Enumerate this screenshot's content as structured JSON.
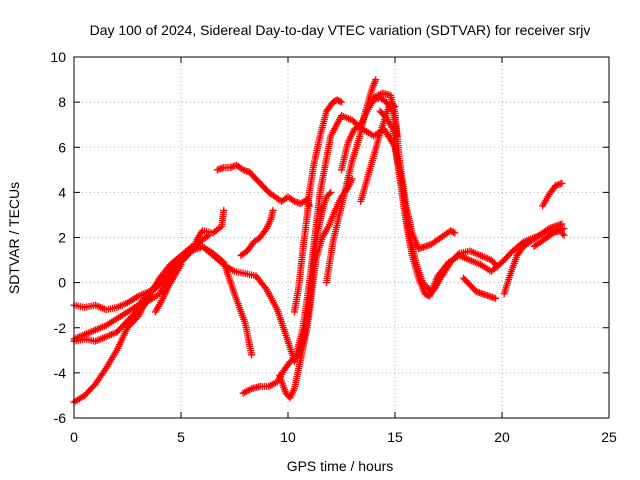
{
  "chart_data": {
    "type": "scatter",
    "title": "Day 100 of 2024, Sidereal Day-to-day VTEC variation (SDTVAR) for receiver srjv",
    "xlabel": "GPS time / hours",
    "ylabel": "SDTVAR / TECUs",
    "xlim": [
      0,
      25
    ],
    "ylim": [
      -6,
      10
    ],
    "xticks": [
      "0",
      "5",
      "10",
      "15",
      "20",
      "25"
    ],
    "yticks": [
      "-6",
      "-4",
      "-2",
      "0",
      "2",
      "4",
      "6",
      "8",
      "10"
    ],
    "grid": true,
    "marker": "+",
    "color": "#ff0000",
    "series": [
      {
        "points": [
          [
            0.0,
            -5.3
          ],
          [
            0.5,
            -5.0
          ],
          [
            1.0,
            -4.5
          ],
          [
            1.5,
            -3.8
          ],
          [
            2.0,
            -3.0
          ],
          [
            2.5,
            -2.0
          ],
          [
            3.0,
            -1.5
          ],
          [
            3.5,
            -0.6
          ],
          [
            4.0,
            0.2
          ],
          [
            4.5,
            0.8
          ],
          [
            5.0,
            1.2
          ],
          [
            5.5,
            1.6
          ],
          [
            6.0,
            1.6
          ],
          [
            6.5,
            1.2
          ],
          [
            7.0,
            0.8
          ],
          [
            7.5,
            0.5
          ],
          [
            8.0,
            0.4
          ],
          [
            8.5,
            0.3
          ],
          [
            9.0,
            -0.3
          ],
          [
            9.5,
            -1.2
          ],
          [
            10.0,
            -2.6
          ],
          [
            10.3,
            -3.5
          ],
          [
            10.7,
            -2.0
          ],
          [
            11.0,
            0.0
          ],
          [
            11.5,
            4.0
          ],
          [
            12.0,
            6.5
          ],
          [
            12.5,
            7.4
          ],
          [
            13.0,
            7.2
          ],
          [
            13.5,
            6.8
          ],
          [
            14.0,
            6.5
          ],
          [
            14.5,
            6.8
          ],
          [
            15.0,
            6.0
          ],
          [
            15.3,
            4.5
          ],
          [
            15.6,
            2.5
          ],
          [
            16.0,
            0.8
          ],
          [
            16.3,
            0.0
          ],
          [
            16.7,
            -0.4
          ],
          [
            17.0,
            0.3
          ],
          [
            17.5,
            0.9
          ],
          [
            18.0,
            1.2
          ],
          [
            18.5,
            1.0
          ],
          [
            19.0,
            0.8
          ],
          [
            19.5,
            0.5
          ],
          [
            20.0,
            0.9
          ],
          [
            20.5,
            1.4
          ],
          [
            21.0,
            1.8
          ],
          [
            21.5,
            2.0
          ],
          [
            22.0,
            2.2
          ],
          [
            22.5,
            2.3
          ],
          [
            22.9,
            2.4
          ]
        ]
      },
      {
        "points": [
          [
            0.0,
            -2.6
          ],
          [
            0.5,
            -2.5
          ],
          [
            1.0,
            -2.6
          ],
          [
            1.5,
            -2.4
          ],
          [
            2.0,
            -2.2
          ],
          [
            2.5,
            -1.7
          ],
          [
            3.0,
            -1.2
          ],
          [
            3.5,
            -0.8
          ],
          [
            4.0,
            -0.5
          ],
          [
            4.5,
            0.3
          ],
          [
            5.0,
            0.9
          ],
          [
            5.5,
            1.4
          ],
          [
            6.0,
            1.6
          ],
          [
            6.5,
            1.3
          ],
          [
            7.0,
            0.9
          ],
          [
            7.5,
            -0.5
          ],
          [
            8.0,
            -1.8
          ],
          [
            8.3,
            -3.2
          ]
        ]
      },
      {
        "points": [
          [
            0.0,
            -1.0
          ],
          [
            0.5,
            -1.1
          ],
          [
            1.0,
            -1.0
          ],
          [
            1.5,
            -1.2
          ],
          [
            2.0,
            -1.1
          ],
          [
            2.5,
            -0.9
          ],
          [
            3.0,
            -0.6
          ],
          [
            3.5,
            -0.4
          ],
          [
            4.0,
            -0.1
          ],
          [
            4.5,
            0.4
          ],
          [
            5.0,
            0.9
          ],
          [
            5.5,
            1.4
          ],
          [
            5.8,
            2.0
          ],
          [
            6.0,
            2.3
          ],
          [
            6.5,
            2.2
          ],
          [
            6.9,
            2.5
          ],
          [
            7.0,
            3.2
          ]
        ]
      },
      {
        "points": [
          [
            0.0,
            -2.5
          ],
          [
            0.5,
            -2.3
          ],
          [
            1.0,
            -2.1
          ],
          [
            1.5,
            -1.9
          ],
          [
            2.0,
            -1.6
          ],
          [
            2.5,
            -1.3
          ],
          [
            3.0,
            -1.0
          ],
          [
            3.5,
            -0.5
          ],
          [
            4.0,
            -0.1
          ],
          [
            4.3,
            0.2
          ],
          [
            4.6,
            0.7
          ],
          [
            5.0,
            1.0
          ],
          [
            5.5,
            1.5
          ],
          [
            6.0,
            1.9
          ],
          [
            6.3,
            2.1
          ]
        ]
      },
      {
        "points": [
          [
            3.8,
            -1.3
          ],
          [
            4.1,
            -0.8
          ],
          [
            4.4,
            -0.2
          ],
          [
            4.7,
            0.3
          ],
          [
            5.0,
            0.8
          ]
        ]
      },
      {
        "points": [
          [
            6.7,
            5.0
          ],
          [
            7.0,
            5.1
          ],
          [
            7.3,
            5.1
          ],
          [
            7.6,
            5.2
          ],
          [
            7.9,
            5.0
          ],
          [
            8.2,
            4.9
          ],
          [
            8.5,
            4.6
          ],
          [
            8.8,
            4.3
          ],
          [
            9.1,
            4.0
          ],
          [
            9.4,
            3.8
          ],
          [
            9.7,
            3.6
          ],
          [
            10.0,
            3.8
          ],
          [
            10.3,
            3.6
          ],
          [
            10.6,
            3.5
          ],
          [
            10.9,
            3.7
          ],
          [
            11.0,
            3.4
          ]
        ]
      },
      {
        "points": [
          [
            7.8,
            1.2
          ],
          [
            8.1,
            1.4
          ],
          [
            8.4,
            1.8
          ],
          [
            8.7,
            2.0
          ],
          [
            9.0,
            2.4
          ],
          [
            9.2,
            2.8
          ],
          [
            9.3,
            3.2
          ]
        ]
      },
      {
        "points": [
          [
            7.9,
            -4.9
          ],
          [
            8.3,
            -4.7
          ],
          [
            8.7,
            -4.6
          ],
          [
            9.1,
            -4.6
          ],
          [
            9.5,
            -4.4
          ],
          [
            9.8,
            -3.9
          ],
          [
            10.1,
            -3.5
          ],
          [
            10.4,
            -3.3
          ],
          [
            10.7,
            -2.7
          ],
          [
            11.0,
            -1.0
          ],
          [
            11.2,
            0.8
          ],
          [
            11.4,
            2.3
          ],
          [
            11.6,
            3.2
          ],
          [
            11.8,
            3.8
          ],
          [
            12.0,
            4.0
          ]
        ]
      },
      {
        "points": [
          [
            9.6,
            -4.1
          ],
          [
            9.9,
            -4.9
          ],
          [
            10.1,
            -5.1
          ],
          [
            10.3,
            -4.7
          ],
          [
            10.5,
            -3.8
          ],
          [
            10.7,
            -2.9
          ],
          [
            10.9,
            -2.0
          ],
          [
            11.1,
            -0.5
          ],
          [
            11.3,
            1.0
          ],
          [
            11.6,
            2.0
          ],
          [
            11.9,
            2.5
          ],
          [
            12.2,
            3.2
          ],
          [
            12.5,
            3.8
          ],
          [
            12.8,
            4.2
          ],
          [
            13.0,
            4.6
          ]
        ]
      },
      {
        "points": [
          [
            10.3,
            -1.3
          ],
          [
            10.5,
            -0.2
          ],
          [
            10.7,
            1.5
          ],
          [
            10.9,
            3.0
          ],
          [
            11.0,
            4.0
          ],
          [
            11.2,
            5.2
          ],
          [
            11.5,
            6.5
          ],
          [
            11.8,
            7.6
          ],
          [
            12.1,
            8.0
          ],
          [
            12.3,
            8.1
          ],
          [
            12.5,
            8.0
          ]
        ]
      },
      {
        "points": [
          [
            11.8,
            0.0
          ],
          [
            12.1,
            1.8
          ],
          [
            12.4,
            3.0
          ],
          [
            12.7,
            4.2
          ],
          [
            13.0,
            5.4
          ],
          [
            13.3,
            6.3
          ],
          [
            13.6,
            7.5
          ],
          [
            13.9,
            8.5
          ],
          [
            14.1,
            9.0
          ]
        ]
      },
      {
        "points": [
          [
            12.5,
            5.0
          ],
          [
            12.8,
            6.2
          ],
          [
            13.1,
            6.8
          ],
          [
            13.4,
            7.0
          ],
          [
            13.7,
            7.6
          ],
          [
            14.0,
            8.1
          ],
          [
            14.3,
            8.2
          ],
          [
            14.6,
            8.0
          ],
          [
            14.9,
            7.6
          ],
          [
            15.1,
            6.5
          ]
        ]
      },
      {
        "points": [
          [
            13.4,
            3.6
          ],
          [
            13.7,
            4.6
          ],
          [
            14.0,
            5.6
          ],
          [
            14.3,
            6.6
          ],
          [
            14.6,
            7.5
          ],
          [
            14.8,
            8.0
          ],
          [
            15.0,
            7.8
          ]
        ]
      },
      {
        "points": [
          [
            14.0,
            8.2
          ],
          [
            14.4,
            8.4
          ],
          [
            14.8,
            8.3
          ],
          [
            15.0,
            7.5
          ],
          [
            15.2,
            5.5
          ],
          [
            15.5,
            3.5
          ],
          [
            15.8,
            2.2
          ],
          [
            16.1,
            1.5
          ],
          [
            16.4,
            1.6
          ],
          [
            16.7,
            1.7
          ],
          [
            17.0,
            1.9
          ],
          [
            17.3,
            2.1
          ],
          [
            17.6,
            2.3
          ],
          [
            17.8,
            2.2
          ]
        ]
      },
      {
        "points": [
          [
            14.3,
            7.6
          ],
          [
            14.6,
            7.3
          ],
          [
            14.9,
            6.8
          ],
          [
            15.2,
            4.8
          ],
          [
            15.5,
            2.8
          ],
          [
            15.8,
            1.2
          ],
          [
            16.1,
            0.2
          ],
          [
            16.4,
            -0.5
          ],
          [
            16.6,
            -0.6
          ],
          [
            16.9,
            -0.2
          ],
          [
            17.2,
            0.3
          ],
          [
            17.6,
            0.9
          ],
          [
            18.0,
            1.3
          ],
          [
            18.5,
            1.4
          ],
          [
            19.0,
            1.2
          ],
          [
            19.5,
            1.0
          ],
          [
            19.8,
            0.7
          ]
        ]
      },
      {
        "points": [
          [
            18.2,
            0.2
          ],
          [
            18.5,
            -0.1
          ],
          [
            18.8,
            -0.4
          ],
          [
            19.1,
            -0.5
          ],
          [
            19.4,
            -0.6
          ],
          [
            19.7,
            -0.7
          ]
        ]
      },
      {
        "points": [
          [
            20.1,
            -0.5
          ],
          [
            20.4,
            0.4
          ],
          [
            20.7,
            1.2
          ],
          [
            21.0,
            1.6
          ],
          [
            21.3,
            1.8
          ],
          [
            21.6,
            2.0
          ],
          [
            21.9,
            2.2
          ],
          [
            22.2,
            2.4
          ],
          [
            22.5,
            2.5
          ],
          [
            22.8,
            2.6
          ]
        ]
      },
      {
        "points": [
          [
            21.9,
            3.4
          ],
          [
            22.2,
            3.9
          ],
          [
            22.5,
            4.3
          ],
          [
            22.8,
            4.4
          ]
        ]
      },
      {
        "points": [
          [
            21.5,
            1.6
          ],
          [
            21.8,
            1.8
          ],
          [
            22.1,
            2.0
          ],
          [
            22.4,
            2.2
          ],
          [
            22.7,
            2.3
          ],
          [
            22.9,
            2.1
          ]
        ]
      }
    ]
  }
}
